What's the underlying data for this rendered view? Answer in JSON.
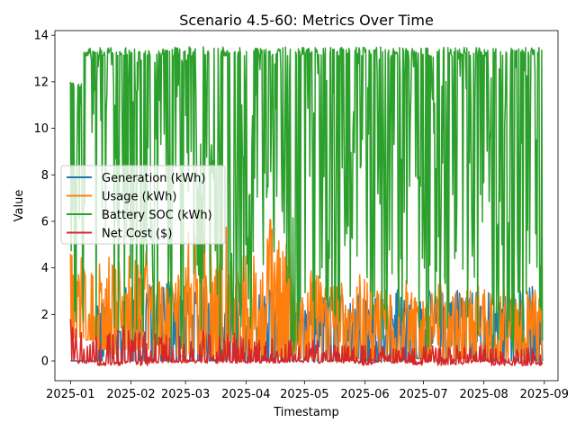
{
  "chart_data": {
    "type": "line",
    "title": "Scenario 4.5-60: Metrics Over Time",
    "xlabel": "Timestamp",
    "ylabel": "Value",
    "xlim": [
      "2024-12-24",
      "2025-09-08"
    ],
    "ylim": [
      -0.85,
      14.2
    ],
    "x_ticks": [
      "2025-01",
      "2025-02",
      "2025-03",
      "2025-04",
      "2025-05",
      "2025-06",
      "2025-07",
      "2025-08",
      "2025-09"
    ],
    "y_ticks": [
      0,
      2,
      4,
      6,
      8,
      10,
      12,
      14
    ],
    "legend_position": "center-left",
    "x_start": "2025-01-01",
    "x_end": "2025-08-31",
    "series": [
      {
        "name": "Generation (kWh)",
        "color": "#1f77b4",
        "envelope_max": [
          0,
          0,
          2.6,
          1.6,
          3.2,
          3.6,
          3.4,
          3.8,
          3.7,
          3.0,
          3.2,
          3.5,
          3.4,
          3.3,
          3.2,
          3.1,
          3.0,
          2.5,
          2.6,
          2.8,
          3.1,
          3.0,
          3.0,
          2.9,
          3.1,
          3.0,
          3.0,
          3.1,
          3.0,
          3.2,
          3.1,
          3.0,
          2.7,
          3.0,
          3.2,
          3.3
        ],
        "envelope_min": [
          0,
          0,
          0,
          0,
          0,
          0,
          0,
          0,
          0,
          0,
          0,
          0,
          0,
          0,
          0,
          0,
          0,
          0,
          0,
          0,
          0,
          0.1,
          0,
          0,
          0,
          0,
          0.1,
          0.1,
          0,
          0,
          0.1,
          0,
          0,
          0,
          0,
          0
        ]
      },
      {
        "name": "Usage (kWh)",
        "color": "#ff7f0e",
        "envelope_max": [
          4.6,
          4.1,
          4.5,
          4.3,
          4.6,
          5.0,
          3.7,
          3.5,
          4.2,
          5.6,
          5.9,
          7.1,
          4.3,
          4.6,
          4.2,
          6.3,
          5.4,
          3.0,
          4.0,
          3.5,
          3.4,
          3.2,
          3.7,
          3.2,
          3.3,
          3.5,
          3.0,
          3.3,
          3.4,
          3.0,
          3.1,
          3.3,
          3.2,
          3.3,
          3.0,
          3.1
        ],
        "envelope_min": [
          1.0,
          0.9,
          0.5,
          0.3,
          0.5,
          0.5,
          0.3,
          0.2,
          0.2,
          0.3,
          0.2,
          0.2,
          0.1,
          0.2,
          0.1,
          0.2,
          0.1,
          0.1,
          0.1,
          0.1,
          0.1,
          0.1,
          0.1,
          0.1,
          0.1,
          0.1,
          0.1,
          0.1,
          0.1,
          0.1,
          0.1,
          0.1,
          0.1,
          0.1,
          0.1,
          0.1
        ]
      },
      {
        "name": "Battery SOC (kWh)",
        "color": "#2ca02c",
        "envelope_max": [
          12.0,
          13.5,
          13.5,
          13.5,
          13.5,
          13.5,
          13.5,
          13.5,
          13.5,
          13.5,
          13.5,
          13.5,
          13.5,
          13.5,
          13.5,
          13.5,
          13.5,
          13.5,
          13.5,
          13.5,
          13.5,
          13.5,
          13.5,
          13.5,
          13.5,
          13.5,
          13.5,
          13.5,
          13.5,
          13.5,
          13.5,
          13.5,
          13.5,
          13.5,
          13.5,
          13.5
        ],
        "envelope_min": [
          0.9,
          0.3,
          0.2,
          0.1,
          0.2,
          0.3,
          0.5,
          0.3,
          0.2,
          0.3,
          0.2,
          0.2,
          0.3,
          0.2,
          0.1,
          0.3,
          0.2,
          0.3,
          0.1,
          0.2,
          0.3,
          0.2,
          0.4,
          0.2,
          0.3,
          0.5,
          0.2,
          0.3,
          0.4,
          0.2,
          0.3,
          0.2,
          0.3,
          0.2,
          0.3,
          0.2
        ]
      },
      {
        "name": "Net Cost ($)",
        "color": "#d62728",
        "envelope_max": [
          1.8,
          1.5,
          1.2,
          1.6,
          1.5,
          1.3,
          1.2,
          1.2,
          1.1,
          1.0,
          1.3,
          1.2,
          1.2,
          1.1,
          1.1,
          1.0,
          1.0,
          0.8,
          0.9,
          0.7,
          0.7,
          0.7,
          0.8,
          0.7,
          0.6,
          0.7,
          0.8,
          0.7,
          0.6,
          0.7,
          0.7,
          0.8,
          0.6,
          0.7,
          0.7,
          0.6
        ],
        "envelope_min": [
          -0.1,
          -0.1,
          -0.2,
          -0.2,
          -0.1,
          -0.2,
          -0.1,
          -0.1,
          -0.1,
          -0.1,
          -0.1,
          -0.1,
          -0.1,
          -0.1,
          -0.1,
          -0.1,
          -0.1,
          -0.1,
          -0.1,
          -0.1,
          -0.1,
          -0.1,
          -0.2,
          -0.1,
          -0.1,
          -0.1,
          -0.2,
          -0.1,
          -0.2,
          -0.2,
          -0.1,
          -0.1,
          -0.2,
          -0.2,
          -0.2,
          -0.2
        ]
      }
    ]
  }
}
